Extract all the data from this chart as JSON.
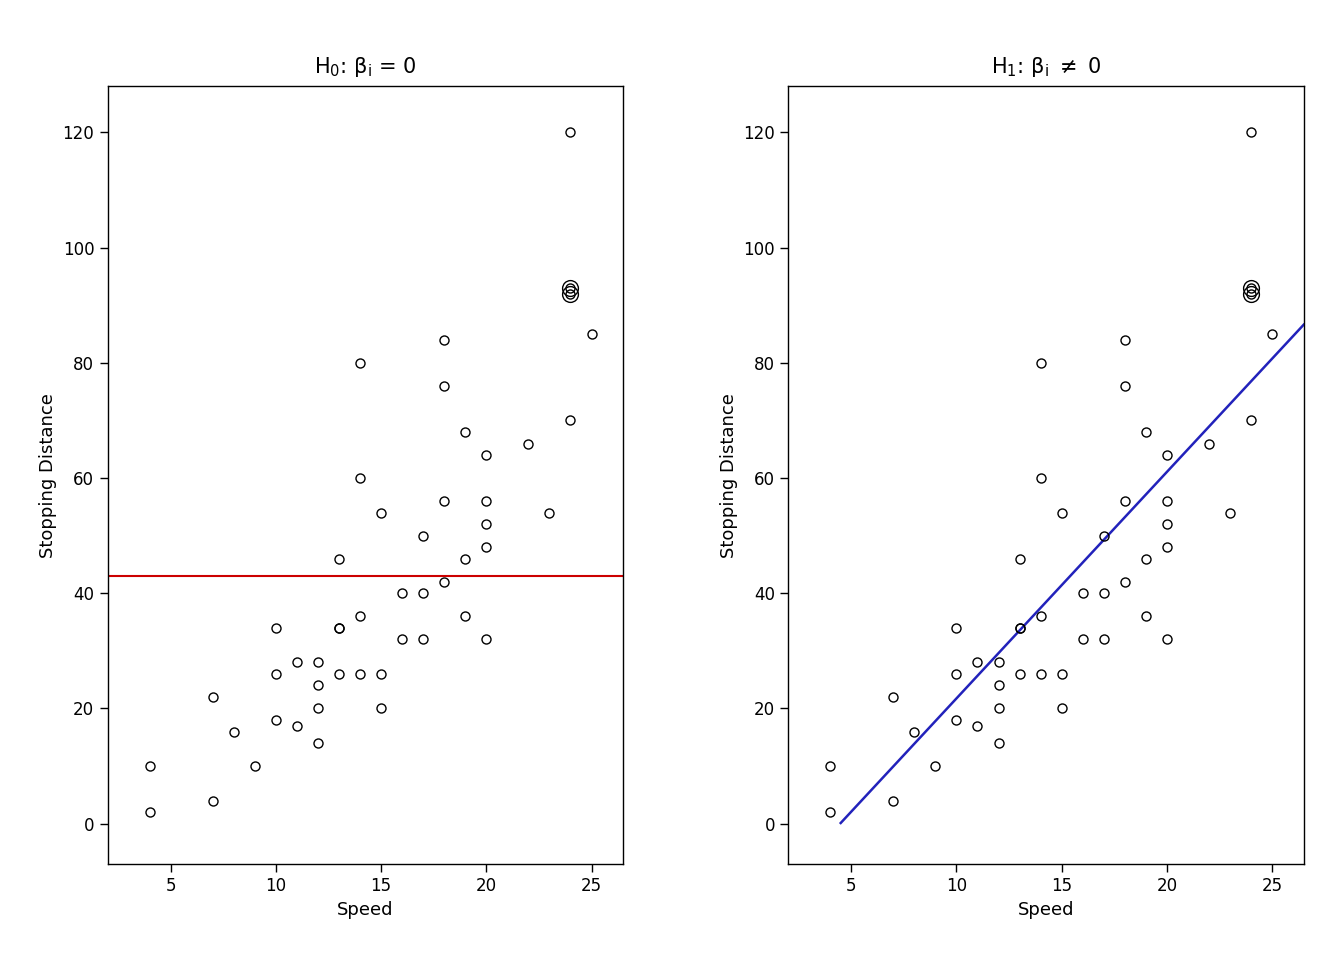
{
  "speed": [
    4,
    4,
    7,
    7,
    8,
    9,
    10,
    10,
    10,
    11,
    11,
    12,
    12,
    12,
    12,
    13,
    13,
    13,
    13,
    14,
    14,
    14,
    14,
    15,
    15,
    15,
    16,
    16,
    17,
    17,
    17,
    18,
    18,
    18,
    18,
    19,
    19,
    19,
    20,
    20,
    20,
    20,
    20,
    22,
    23,
    24,
    24,
    24,
    24,
    25
  ],
  "dist": [
    2,
    10,
    4,
    22,
    16,
    10,
    18,
    26,
    34,
    17,
    28,
    14,
    20,
    24,
    28,
    26,
    34,
    34,
    46,
    26,
    36,
    60,
    80,
    20,
    26,
    54,
    32,
    40,
    32,
    40,
    50,
    42,
    56,
    76,
    84,
    36,
    46,
    68,
    32,
    48,
    52,
    56,
    64,
    66,
    54,
    70,
    92,
    93,
    120,
    85
  ],
  "xlabel": "Speed",
  "ylabel": "Stopping Distance",
  "xlim": [
    2.0,
    26.5
  ],
  "ylim": [
    -7.0,
    128.0
  ],
  "xticks": [
    5,
    10,
    15,
    20,
    25
  ],
  "yticks": [
    0,
    20,
    40,
    60,
    80,
    100,
    120
  ],
  "red_line_y": 42.98,
  "blue_line_slope": 3.9324,
  "blue_line_intercept": -17.5791,
  "blue_line_x_start": 4.5,
  "blue_line_x_end": 26.5,
  "marker_size": 6.5,
  "marker_lw": 1.0,
  "background_color": "#ffffff",
  "line_color_red": "#cc0000",
  "line_color_blue": "#2222bb",
  "title_fontsize": 15,
  "label_fontsize": 13,
  "tick_fontsize": 12,
  "double_circle_points": [
    [
      24,
      92
    ],
    [
      24,
      93
    ]
  ]
}
